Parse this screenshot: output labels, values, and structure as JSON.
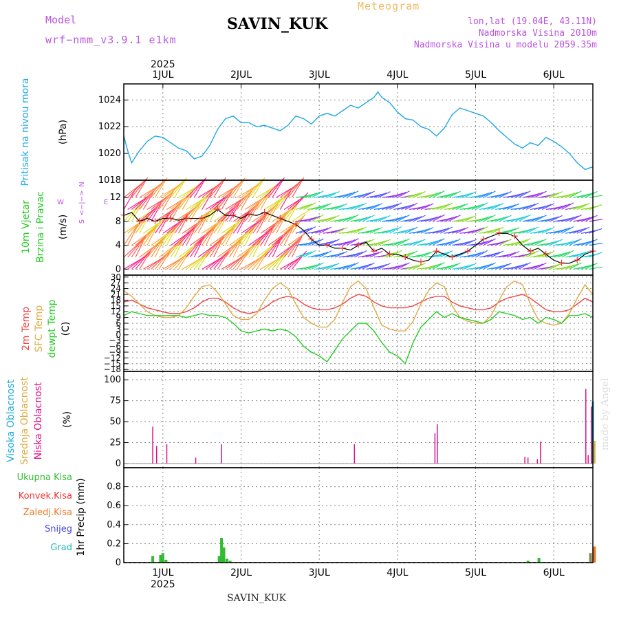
{
  "header": {
    "model_label": "Model",
    "model_name": "wrf−nmm_v3.9.1 e1km",
    "station": "SAVIN_KUK",
    "title": "Meteogram",
    "coords": "lon,lat (19.04E, 43.11N)",
    "elevation": "Nadmorska Visina 2010m",
    "model_elevation": "Nadmorska Visina u modelu 2059.35m"
  },
  "footer": {
    "station": "SAVIN_KUK",
    "credit": "made by Angel"
  },
  "time_axis": {
    "year": "2025",
    "day_labels": [
      "1JUL",
      "2JUL",
      "3JUL",
      "4JUL",
      "5JUL",
      "6JUL"
    ]
  },
  "colors": {
    "pressure": "#1ea7e8",
    "wind": "#000000",
    "temp_2m": "#ee4444",
    "temp_sfc": "#e0aa44",
    "dewpoint": "#22cc22",
    "cloud_high": "#22aadd",
    "cloud_mid": "#ddaa44",
    "cloud_low": "#dd1188",
    "precip_total": "#33bb33",
    "precip_conv": "#ee3333",
    "precip_frozen": "#ee7722",
    "snow": "#4444dd",
    "hail": "#22bbbb"
  },
  "chart_data": [
    {
      "type": "line",
      "panel": "pressure",
      "side_labels": [
        "Pritisak na nivou mora"
      ],
      "unit": "(hPa)",
      "ylim": [
        1018,
        1025.2
      ],
      "yticks": [
        1018,
        1020,
        1022,
        1024
      ],
      "series": [
        {
          "x": [
            0.5,
            0.55,
            0.6,
            0.7,
            0.8,
            0.9,
            1.0,
            1.1,
            1.2,
            1.3,
            1.4,
            1.5,
            1.6,
            1.7,
            1.8,
            1.9,
            2.0,
            2.1,
            2.2,
            2.3,
            2.4,
            2.5,
            2.6,
            2.7,
            2.8,
            2.9,
            3.0,
            3.1,
            3.2,
            3.3,
            3.4,
            3.5,
            3.6,
            3.7,
            3.75,
            3.8,
            3.9,
            4.0,
            4.1,
            4.2,
            4.3,
            4.4,
            4.5,
            4.6,
            4.7,
            4.8,
            4.9,
            5.0,
            5.1,
            5.2,
            5.3,
            5.4,
            5.5,
            5.6,
            5.7,
            5.8,
            5.9,
            6.0,
            6.1,
            6.2,
            6.3,
            6.4,
            6.5
          ],
          "y": [
            1021.3,
            1020.2,
            1019.3,
            1020.2,
            1020.9,
            1021.3,
            1021.2,
            1020.8,
            1020.4,
            1020.2,
            1019.6,
            1019.8,
            1020.6,
            1021.8,
            1022.6,
            1022.8,
            1022.3,
            1022.3,
            1022.0,
            1022.1,
            1021.9,
            1021.7,
            1022.1,
            1022.8,
            1022.6,
            1022.2,
            1022.8,
            1023.0,
            1022.8,
            1023.2,
            1023.6,
            1023.4,
            1023.8,
            1024.2,
            1024.6,
            1024.2,
            1023.8,
            1023.1,
            1022.6,
            1022.5,
            1022.0,
            1021.8,
            1021.3,
            1021.9,
            1022.9,
            1023.4,
            1023.2,
            1023.0,
            1022.8,
            1022.3,
            1021.7,
            1021.2,
            1020.7,
            1020.4,
            1020.8,
            1020.6,
            1021.2,
            1020.9,
            1020.5,
            1020.0,
            1019.3,
            1018.8,
            1019.0
          ]
        }
      ]
    },
    {
      "type": "line",
      "panel": "wind",
      "side_labels": [
        "10m Vjetar",
        "Brzina i Pravac"
      ],
      "unit": "(m/s)",
      "direction_legend": [
        "N",
        "<−|−>",
        "W",
        "E",
        "S"
      ],
      "ylim": [
        -1,
        14.9
      ],
      "yticks": [
        0,
        4,
        8,
        12
      ],
      "series": [
        {
          "name": "speed",
          "x": [
            0.5,
            0.6,
            0.7,
            0.8,
            0.9,
            1.0,
            1.1,
            1.2,
            1.3,
            1.4,
            1.5,
            1.6,
            1.7,
            1.8,
            1.9,
            2.0,
            2.1,
            2.2,
            2.3,
            2.4,
            2.5,
            2.6,
            2.7,
            2.8,
            2.9,
            3.0,
            3.1,
            3.2,
            3.3,
            3.4,
            3.5,
            3.6,
            3.7,
            3.8,
            3.9,
            4.0,
            4.1,
            4.2,
            4.3,
            4.4,
            4.5,
            4.6,
            4.7,
            4.8,
            4.9,
            5.0,
            5.1,
            5.2,
            5.3,
            5.4,
            5.5,
            5.6,
            5.7,
            5.8,
            5.9,
            6.0,
            6.1,
            6.2,
            6.3,
            6.4,
            6.5
          ],
          "y": [
            9.0,
            9.5,
            8.0,
            8.5,
            8.0,
            8.5,
            8.5,
            8.2,
            8.5,
            8.5,
            8.5,
            9.0,
            10.0,
            9.0,
            9.0,
            8.5,
            9.2,
            9.0,
            9.5,
            9.0,
            8.5,
            8.0,
            7.5,
            6.5,
            5.0,
            4.0,
            4.0,
            3.5,
            3.5,
            3.2,
            4.0,
            4.5,
            3.0,
            3.5,
            2.5,
            2.5,
            2.0,
            1.5,
            1.2,
            1.5,
            3.0,
            2.5,
            2.0,
            2.5,
            3.0,
            4.0,
            5.0,
            5.5,
            6.0,
            6.0,
            5.5,
            4.0,
            3.0,
            3.5,
            2.5,
            1.5,
            1.0,
            1.0,
            1.5,
            2.5,
            3.0
          ]
        }
      ]
    },
    {
      "type": "line",
      "panel": "temperature",
      "side_labels": [
        "2m Temp",
        "SFC Temp",
        "dewpt Temp"
      ],
      "unit": "(C)",
      "ylim": [
        -19,
        31
      ],
      "yticks": [
        -18,
        -15,
        -12,
        -9,
        -6,
        -3,
        0,
        3,
        6,
        9,
        12,
        15,
        18,
        21,
        24,
        27,
        30
      ],
      "series": [
        {
          "name": "2m Temp",
          "x": [
            0.5,
            0.6,
            0.7,
            0.8,
            0.9,
            1.0,
            1.1,
            1.2,
            1.3,
            1.4,
            1.5,
            1.6,
            1.7,
            1.8,
            1.9,
            2.0,
            2.1,
            2.2,
            2.3,
            2.4,
            2.5,
            2.6,
            2.7,
            2.8,
            2.9,
            3.0,
            3.1,
            3.2,
            3.3,
            3.4,
            3.5,
            3.6,
            3.7,
            3.8,
            3.9,
            4.0,
            4.1,
            4.2,
            4.3,
            4.4,
            4.5,
            4.6,
            4.7,
            4.8,
            4.9,
            5.0,
            5.1,
            5.2,
            5.3,
            5.4,
            5.5,
            5.6,
            5.7,
            5.8,
            5.9,
            6.0,
            6.1,
            6.2,
            6.3,
            6.4,
            6.5
          ],
          "y": [
            17,
            18,
            16,
            14,
            13,
            12,
            11,
            11,
            12,
            14,
            17,
            19,
            19,
            17,
            14,
            12,
            11,
            12,
            14,
            17,
            19,
            20,
            19,
            16,
            14,
            13,
            13,
            14,
            16,
            19,
            21,
            20,
            17,
            15,
            14,
            14,
            14,
            15,
            17,
            19,
            20,
            20,
            17,
            15,
            14,
            13,
            13,
            14,
            17,
            19,
            20,
            21,
            19,
            16,
            13,
            12,
            12,
            13,
            16,
            19,
            17
          ]
        },
        {
          "name": "SFC Temp",
          "x": [
            0.5,
            0.6,
            0.7,
            0.8,
            0.9,
            1.0,
            1.1,
            1.2,
            1.3,
            1.4,
            1.5,
            1.6,
            1.7,
            1.8,
            1.9,
            2.0,
            2.1,
            2.2,
            2.3,
            2.4,
            2.5,
            2.6,
            2.7,
            2.8,
            2.9,
            3.0,
            3.1,
            3.2,
            3.3,
            3.4,
            3.5,
            3.6,
            3.7,
            3.8,
            3.9,
            4.0,
            4.1,
            4.2,
            4.3,
            4.4,
            4.5,
            4.6,
            4.7,
            4.8,
            4.9,
            5.0,
            5.1,
            5.2,
            5.3,
            5.4,
            5.5,
            5.6,
            5.7,
            5.8,
            5.9,
            6.0,
            6.1,
            6.2,
            6.3,
            6.4,
            6.5
          ],
          "y": [
            23,
            20,
            16,
            12,
            10,
            9,
            9,
            10,
            14,
            20,
            25,
            26,
            22,
            16,
            10,
            8,
            8,
            11,
            18,
            24,
            27,
            24,
            16,
            9,
            6,
            4,
            4,
            8,
            17,
            25,
            28,
            24,
            14,
            5,
            3,
            2,
            2,
            7,
            16,
            23,
            27,
            25,
            15,
            9,
            7,
            6,
            6,
            10,
            18,
            25,
            28,
            26,
            16,
            8,
            6,
            5,
            6,
            11,
            19,
            26,
            21
          ]
        },
        {
          "name": "dewpt Temp",
          "x": [
            0.5,
            0.6,
            0.7,
            0.8,
            0.9,
            1.0,
            1.1,
            1.2,
            1.3,
            1.4,
            1.5,
            1.6,
            1.7,
            1.8,
            1.9,
            2.0,
            2.1,
            2.2,
            2.3,
            2.4,
            2.5,
            2.6,
            2.7,
            2.8,
            2.9,
            3.0,
            3.1,
            3.2,
            3.3,
            3.4,
            3.5,
            3.6,
            3.7,
            3.8,
            3.9,
            4.0,
            4.1,
            4.2,
            4.3,
            4.4,
            4.5,
            4.6,
            4.7,
            4.8,
            4.9,
            5.0,
            5.1,
            5.2,
            5.3,
            5.4,
            5.5,
            5.6,
            5.7,
            5.8,
            5.9,
            6.0,
            6.1,
            6.2,
            6.3,
            6.4,
            6.5
          ],
          "y": [
            10,
            12,
            11,
            10,
            10,
            10,
            10,
            10,
            9,
            10,
            11,
            10,
            10,
            9,
            6,
            2,
            1,
            2,
            3,
            2,
            3,
            2,
            -1,
            -6,
            -9,
            -11,
            -14,
            -8,
            -2,
            2,
            6,
            6,
            2,
            -4,
            -9,
            -11,
            -15,
            -4,
            4,
            8,
            12,
            9,
            11,
            9,
            8,
            7,
            6,
            8,
            12,
            11,
            10,
            8,
            9,
            6,
            9,
            8,
            6,
            10,
            10,
            11,
            9
          ]
        }
      ]
    },
    {
      "type": "bar",
      "panel": "cloud",
      "side_labels": [
        "Visoka Oblacnost",
        "Srednja Oblacnost",
        "Niska Oblacnost"
      ],
      "unit": "(%)",
      "ylim": [
        -5,
        110
      ],
      "yticks": [
        0,
        25,
        50,
        75,
        100
      ],
      "series": [
        {
          "name": "Niska Oblacnost",
          "x": [
            0.87,
            0.92,
            1.05,
            1.42,
            1.75,
            3.45,
            4.48,
            4.51,
            5.63,
            5.67,
            5.79,
            5.83,
            6.41,
            6.44,
            6.48,
            6.51
          ],
          "y": [
            44,
            21,
            23,
            7,
            23,
            23,
            36,
            47,
            8,
            7,
            5,
            26,
            89,
            10,
            68,
            12
          ]
        },
        {
          "name": "Visoka Oblacnost",
          "x": [
            6.5
          ],
          "y": [
            74
          ]
        },
        {
          "name": "Srednja Oblacnost",
          "x": [
            6.52
          ],
          "y": [
            27
          ]
        }
      ]
    },
    {
      "type": "bar",
      "panel": "precipitation",
      "side_labels": [
        "Ukupna Kisa",
        "Konvek.Kisa",
        "Zaledj.Kisa",
        "Snijeg",
        "Grad"
      ],
      "unit": "1hr Precip (mm)",
      "ylim": [
        0,
        1.0
      ],
      "yticks": [
        0,
        0.2,
        0.4,
        0.6,
        0.8
      ],
      "series": [
        {
          "name": "Ukupna Kisa",
          "x": [
            0.87,
            0.97,
            1.0,
            1.04,
            1.72,
            1.75,
            1.78,
            1.82,
            1.86,
            5.67,
            5.81,
            6.47,
            6.52
          ],
          "y": [
            0.07,
            0.08,
            0.1,
            0.03,
            0.07,
            0.26,
            0.16,
            0.04,
            0.02,
            0.02,
            0.05,
            0.1,
            0.17
          ]
        }
      ]
    }
  ]
}
